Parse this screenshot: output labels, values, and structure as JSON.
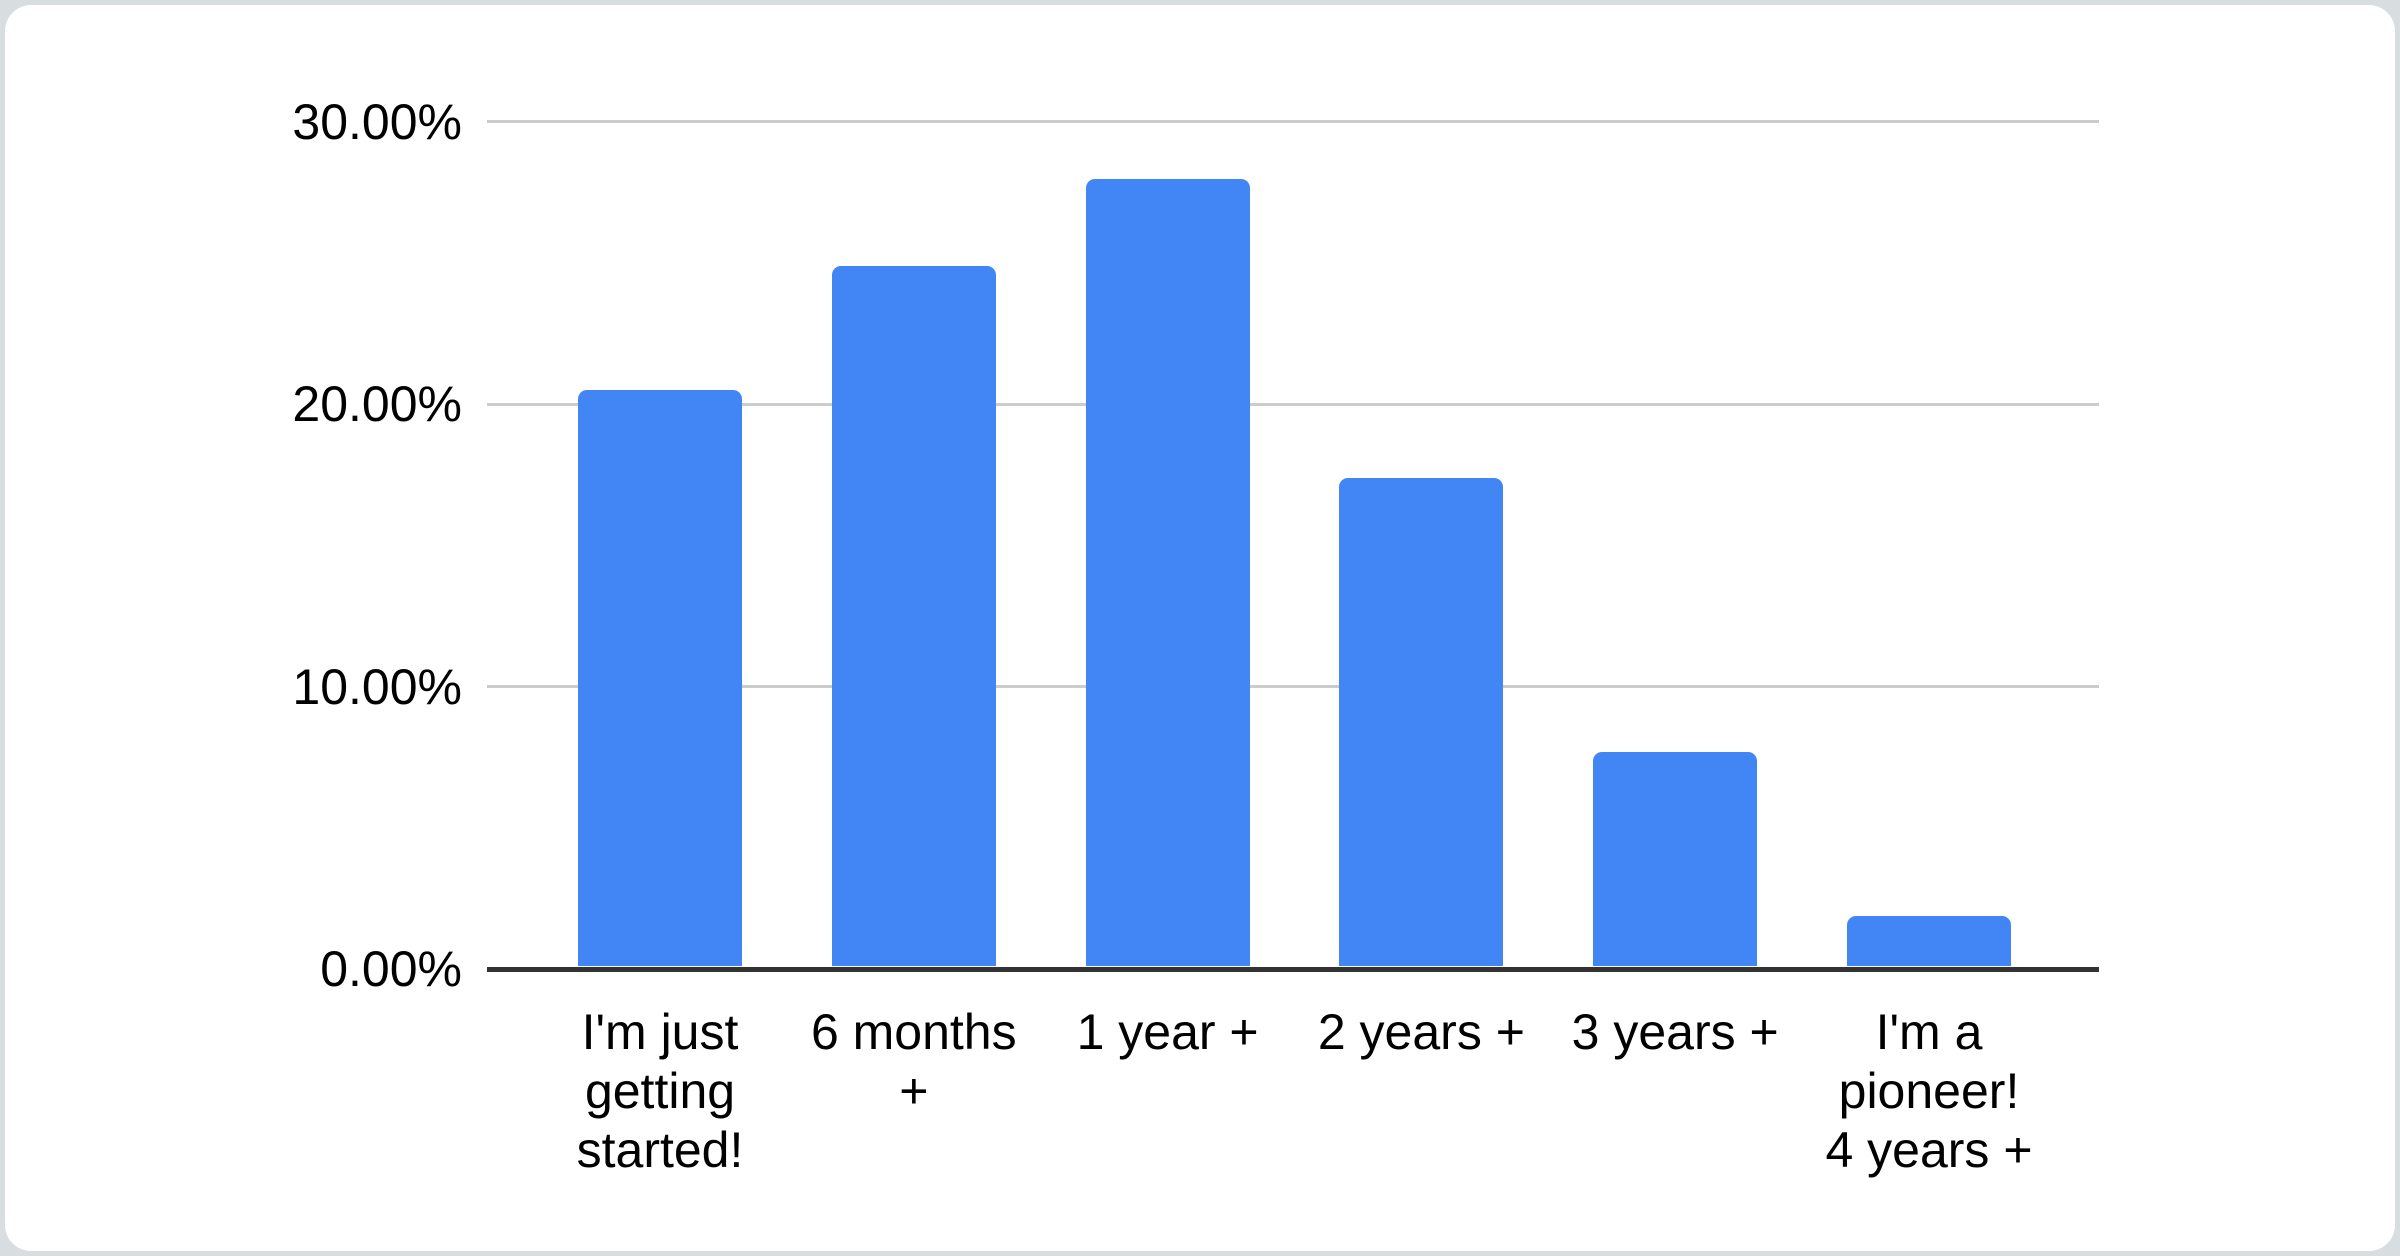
{
  "page": {
    "background": "#d8dde0",
    "card_background": "#ffffff"
  },
  "chart_data": {
    "type": "bar",
    "title": "",
    "xlabel": "",
    "ylabel": "",
    "categories": [
      "I'm just getting started!",
      "6 months +",
      "1 year +",
      "2 years +",
      "3 years +",
      "I'm a pioneer! 4 years +"
    ],
    "category_lines": [
      [
        "I'm just",
        "getting",
        "started!"
      ],
      [
        "6 months",
        "+"
      ],
      [
        "1 year +"
      ],
      [
        "2 years +"
      ],
      [
        "3 years +"
      ],
      [
        "I'm a",
        "pioneer!",
        "4 years +"
      ]
    ],
    "values": [
      20.4,
      24.8,
      27.9,
      17.3,
      7.6,
      1.8
    ],
    "unit": "%",
    "y_ticks": [
      {
        "value": 0,
        "label": "0.00%"
      },
      {
        "value": 10,
        "label": "10.00%"
      },
      {
        "value": 20,
        "label": "20.00%"
      },
      {
        "value": 30,
        "label": "30.00%"
      }
    ],
    "ylim": [
      0,
      30
    ],
    "grid": true,
    "legend_position": "none",
    "bar_color": "#4285f4",
    "gridline_color": "#cccccc",
    "baseline_color": "#333333",
    "label_color": "#000000"
  }
}
